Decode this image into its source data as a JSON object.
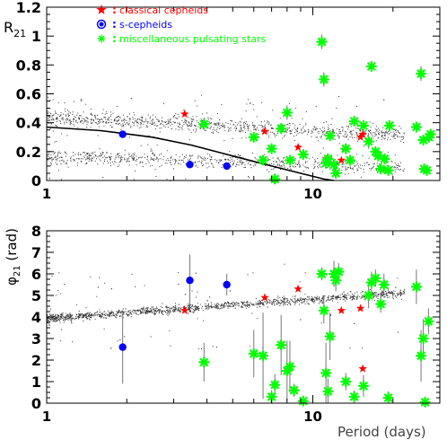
{
  "chart_data": [
    {
      "type": "scatter",
      "panel": "top",
      "ylabel": "R21",
      "xlabel": "",
      "x_scale": "log",
      "xlim": [
        1,
        30
      ],
      "ylim": [
        0,
        1.2
      ],
      "x_ticks": [
        1,
        10
      ],
      "y_ticks": [
        0,
        0.2,
        0.4,
        0.6,
        0.8,
        1,
        1.2
      ],
      "legend": {
        "placement": "top-center",
        "entries": [
          {
            "symbol": "star",
            "color": "#ff0000",
            "label": "classical cepheids"
          },
          {
            "symbol": "circle",
            "color": "#0000ff",
            "label": "s-cepheids"
          },
          {
            "symbol": "asterisk",
            "color": "#00ff00",
            "label": "miscellaneous pulsating stars"
          }
        ]
      },
      "curve": {
        "color": "#000000",
        "points": [
          [
            1.0,
            0.37
          ],
          [
            1.6,
            0.345
          ],
          [
            2.5,
            0.3
          ],
          [
            3.5,
            0.245
          ],
          [
            5,
            0.17
          ],
          [
            7,
            0.1
          ],
          [
            9,
            0.05
          ],
          [
            11,
            0.01
          ],
          [
            12,
            0.0
          ]
        ]
      },
      "series": [
        {
          "name": "classical cepheids",
          "color": "#ff0000",
          "symbol": "star",
          "points": [
            [
              3.3,
              0.46
            ],
            [
              6.6,
              0.34
            ],
            [
              8.8,
              0.23
            ],
            [
              12.8,
              0.14
            ],
            [
              15.1,
              0.3
            ],
            [
              15.4,
              0.32
            ],
            [
              11.3,
              0.15
            ]
          ]
        },
        {
          "name": "s-cepheids",
          "color": "#0000ff",
          "symbol": "circle",
          "points": [
            [
              1.93,
              0.32
            ],
            [
              3.45,
              0.11
            ],
            [
              4.75,
              0.1
            ]
          ]
        },
        {
          "name": "miscellaneous pulsating stars",
          "color": "#00ff00",
          "symbol": "asterisk",
          "points": [
            [
              3.9,
              0.39,
              0
            ],
            [
              6.0,
              0.3,
              0
            ],
            [
              6.5,
              0.14,
              0
            ],
            [
              7.0,
              0.22,
              0
            ],
            [
              7.2,
              0.01,
              0
            ],
            [
              7.6,
              0.36,
              0
            ],
            [
              8.0,
              0.47,
              0.05
            ],
            [
              8.2,
              0.14,
              0
            ],
            [
              9.2,
              0.18,
              0
            ],
            [
              10.8,
              0.96,
              0.05
            ],
            [
              11.0,
              0.7,
              0.05
            ],
            [
              11.2,
              0.12,
              0
            ],
            [
              11.4,
              0.15,
              0
            ],
            [
              11.6,
              0.31,
              0
            ],
            [
              12.0,
              0.11,
              0
            ],
            [
              12.2,
              0.05,
              0
            ],
            [
              13.3,
              0.22,
              0
            ],
            [
              13.8,
              0.14,
              0
            ],
            [
              14.3,
              0.41,
              0
            ],
            [
              15.5,
              0.38,
              0.04
            ],
            [
              16.2,
              0.27,
              0.05
            ],
            [
              16.6,
              0.79,
              0
            ],
            [
              17.2,
              0.2,
              0
            ],
            [
              17.6,
              0.17,
              0
            ],
            [
              18.0,
              0.08,
              0
            ],
            [
              18.6,
              0.15,
              0
            ],
            [
              19.4,
              0.38,
              0
            ],
            [
              19.2,
              0.07,
              0
            ],
            [
              24.5,
              0.37,
              0
            ],
            [
              25.5,
              0.74,
              0.05
            ],
            [
              26.0,
              0.28,
              0
            ],
            [
              26.2,
              0.08,
              0
            ],
            [
              26.8,
              0.07,
              0
            ],
            [
              27.3,
              0.3,
              0
            ],
            [
              27.7,
              0.32,
              0
            ]
          ]
        }
      ]
    },
    {
      "type": "scatter",
      "panel": "bottom",
      "ylabel": "φ21 (rad)",
      "xlabel": "Period (days)",
      "x_scale": "log",
      "xlim": [
        1,
        30
      ],
      "ylim": [
        0,
        8
      ],
      "x_ticks": [
        1,
        10
      ],
      "y_ticks": [
        0,
        1,
        2,
        3,
        4,
        5,
        6,
        7,
        8
      ],
      "series": [
        {
          "name": "classical cepheids",
          "color": "#ff0000",
          "symbol": "star",
          "points": [
            [
              3.3,
              4.3
            ],
            [
              6.6,
              4.9
            ],
            [
              8.8,
              5.3
            ],
            [
              12.8,
              4.3
            ],
            [
              15.1,
              4.4
            ],
            [
              15.4,
              1.6
            ]
          ]
        },
        {
          "name": "s-cepheids",
          "color": "#0000ff",
          "symbol": "circle",
          "points": [
            [
              1.93,
              2.6,
              1.7
            ],
            [
              3.45,
              5.7,
              1.2
            ],
            [
              4.75,
              5.5,
              0.5
            ]
          ]
        },
        {
          "name": "miscellaneous pulsating stars",
          "color": "#00ff00",
          "symbol": "asterisk",
          "points": [
            [
              3.9,
              1.9,
              0.9
            ],
            [
              6.0,
              2.3,
              1.1
            ],
            [
              6.5,
              2.2,
              2.0
            ],
            [
              7.0,
              0.3,
              0.3
            ],
            [
              7.2,
              0.85,
              0.5
            ],
            [
              7.6,
              2.7,
              1.4
            ],
            [
              8.0,
              1.5,
              1.4
            ],
            [
              8.2,
              1.7,
              1.2
            ],
            [
              8.5,
              0.6,
              0.3
            ],
            [
              9.2,
              0.1,
              0
            ],
            [
              10.8,
              6.0,
              0.3
            ],
            [
              11.0,
              4.3,
              0.6
            ],
            [
              11.2,
              1.4,
              1.4
            ],
            [
              11.4,
              0.55,
              0.6
            ],
            [
              11.6,
              3.1,
              1.1
            ],
            [
              12.0,
              6.0,
              0.6
            ],
            [
              12.2,
              5.7,
              0.5
            ],
            [
              12.5,
              6.1,
              0.4
            ],
            [
              13.3,
              1.0,
              0.4
            ],
            [
              14.3,
              0.3,
              0.3
            ],
            [
              15.5,
              0.8,
              0.5
            ],
            [
              16.2,
              5.0,
              0.6
            ],
            [
              16.6,
              5.6,
              0.5
            ],
            [
              17.2,
              5.8,
              0.4
            ],
            [
              18.0,
              4.6,
              0.4
            ],
            [
              18.5,
              5.5,
              0.5
            ],
            [
              19.2,
              0.25,
              0.3
            ],
            [
              24.5,
              5.4,
              0.8
            ],
            [
              25.5,
              2.2,
              1.2
            ],
            [
              26.0,
              3.0,
              0.9
            ],
            [
              26.4,
              0.05,
              0.2
            ],
            [
              27.2,
              3.8,
              0.6
            ]
          ]
        }
      ]
    }
  ]
}
